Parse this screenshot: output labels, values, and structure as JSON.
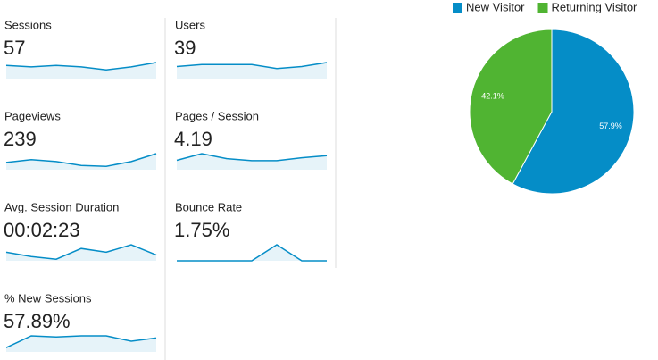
{
  "metrics": [
    {
      "label": "Sessions",
      "value": "57",
      "sparkline": [
        9,
        8,
        9,
        8,
        6,
        8,
        11
      ]
    },
    {
      "label": "Users",
      "value": "39",
      "sparkline": [
        6,
        7,
        7,
        7,
        5,
        6,
        8
      ]
    },
    {
      "label": "Pageviews",
      "value": "239",
      "sparkline": [
        30,
        42,
        34,
        18,
        14,
        34,
        67
      ]
    },
    {
      "label": "Pages / Session",
      "value": "4.19",
      "sparkline": [
        3.2,
        5.5,
        3.8,
        3.1,
        3.1,
        4.1,
        4.8
      ]
    },
    {
      "label": "Avg. Session Duration",
      "value": "00:02:23",
      "sparkline": [
        80,
        40,
        15,
        115,
        80,
        150,
        55
      ]
    },
    {
      "label": "Bounce Rate",
      "value": "1.75%",
      "sparkline": [
        0,
        0,
        0,
        0,
        12.5,
        0,
        0
      ]
    },
    {
      "label": "% New Sessions",
      "value": "57.89%",
      "sparkline": [
        20,
        75,
        70,
        75,
        75,
        50,
        65
      ]
    }
  ],
  "sparkline_color": "#058dc7",
  "chart_data": {
    "type": "pie",
    "categories": [
      "New Visitor",
      "Returning Visitor"
    ],
    "values": [
      57.9,
      42.1
    ],
    "value_labels": [
      "57.9%",
      "42.1%"
    ],
    "colors": [
      "#058dc7",
      "#50b432"
    ],
    "legend": "top"
  }
}
